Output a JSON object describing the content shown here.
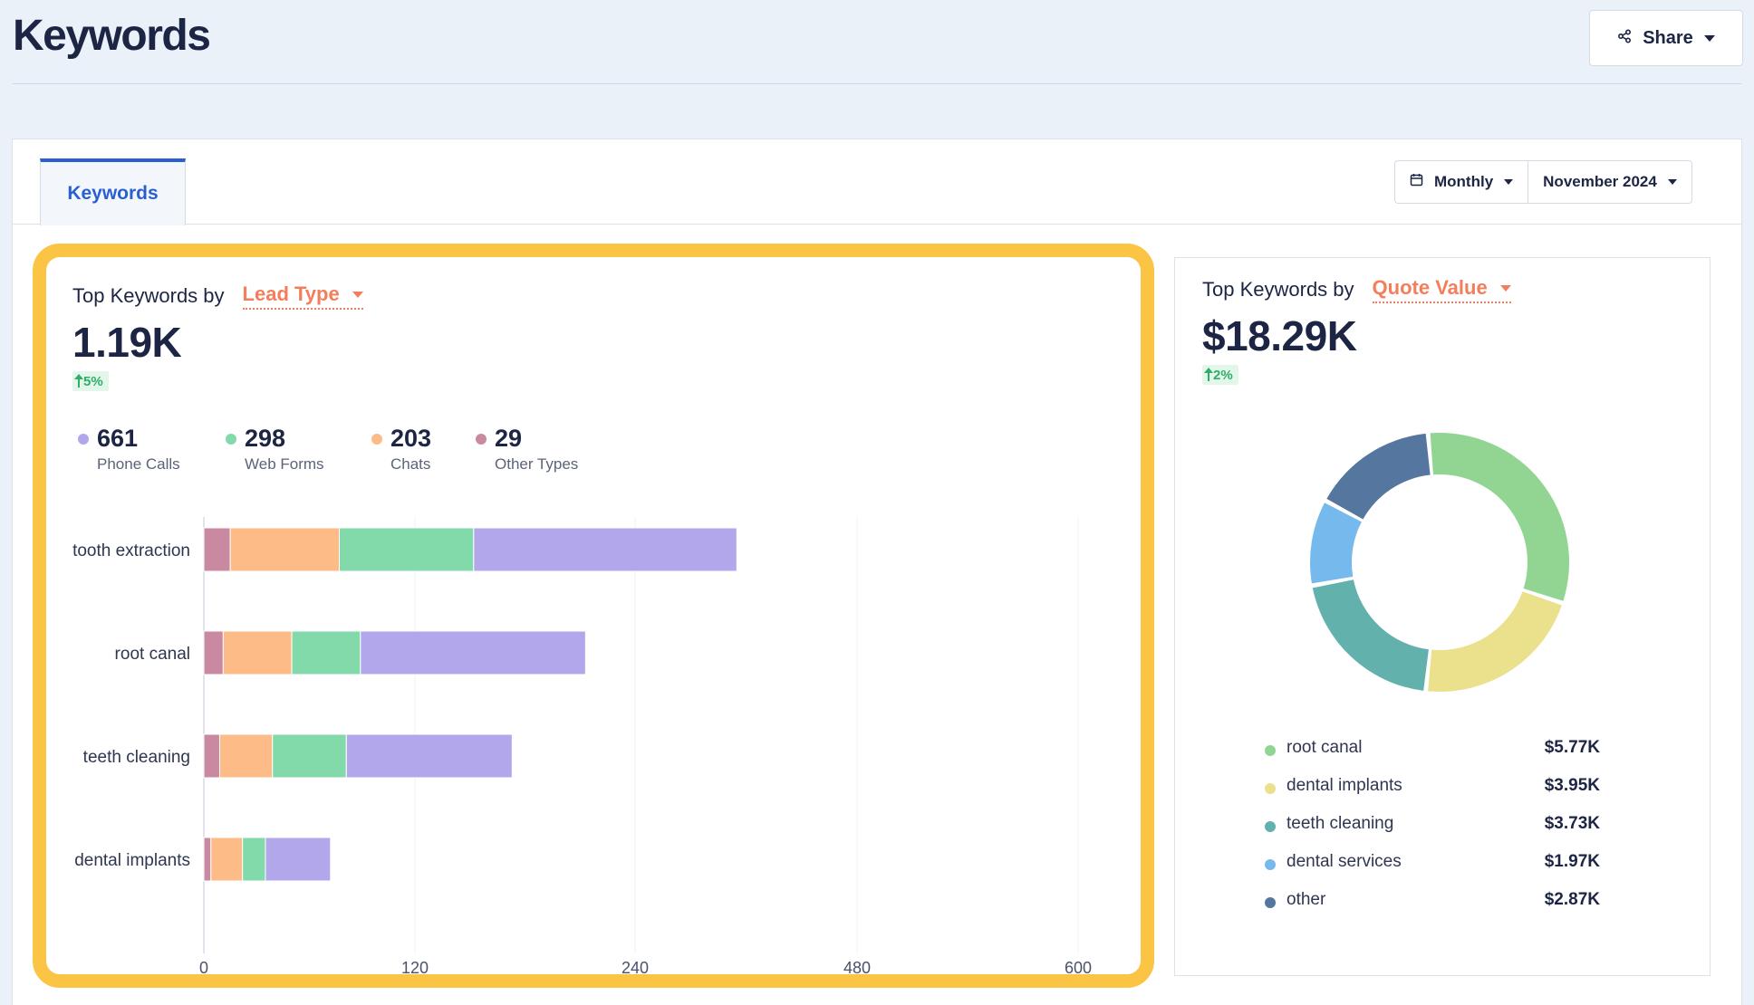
{
  "page": {
    "title": "Keywords"
  },
  "header": {
    "share_label": "Share"
  },
  "tabs": [
    {
      "label": "Keywords"
    }
  ],
  "period": {
    "granularity": "Monthly",
    "month": "November 2024"
  },
  "lead_card": {
    "heading": "Top Keywords by",
    "dimension": "Lead Type",
    "total": "1.19K",
    "delta": "5%",
    "stats": [
      {
        "value": "661",
        "label": "Phone Calls",
        "color": "#b3a7ec"
      },
      {
        "value": "298",
        "label": "Web Forms",
        "color": "#82d9aa"
      },
      {
        "value": "203",
        "label": "Chats",
        "color": "#fdbb87"
      },
      {
        "value": "29",
        "label": "Other Types",
        "color": "#c98aa1"
      }
    ]
  },
  "quote_card": {
    "heading": "Top Keywords by",
    "dimension": "Quote Value",
    "total": "$18.29K",
    "delta": "2%",
    "legend": [
      {
        "name": "root canal",
        "value": "$5.77K",
        "color": "#92d592"
      },
      {
        "name": "dental implants",
        "value": "$3.95K",
        "color": "#ebe08c"
      },
      {
        "name": "teeth cleaning",
        "value": "$3.73K",
        "color": "#63b1ad"
      },
      {
        "name": "dental services",
        "value": "$1.97K",
        "color": "#76baed"
      },
      {
        "name": "other",
        "value": "$2.87K",
        "color": "#54769f"
      }
    ]
  },
  "chart_data": [
    {
      "type": "bar",
      "orientation": "horizontal",
      "stacked": true,
      "categories": [
        "tooth extraction",
        "root canal",
        "teeth cleaning",
        "dental implants"
      ],
      "series": [
        {
          "name": "Other Types",
          "values": [
            15,
            11,
            9,
            4
          ],
          "color": "#c98aa1"
        },
        {
          "name": "Chats",
          "values": [
            62,
            39,
            30,
            18
          ],
          "color": "#fdbb87"
        },
        {
          "name": "Web Forms",
          "values": [
            75,
            39,
            42,
            13
          ],
          "color": "#82d9aa"
        },
        {
          "name": "Phone Calls",
          "values": [
            198,
            124,
            92,
            37
          ],
          "color": "#b3a7ec"
        }
      ],
      "x_ticks": [
        {
          "label": "0",
          "value": 0
        },
        {
          "label": "120",
          "value": 120
        },
        {
          "label": "240",
          "value": 240
        },
        {
          "label": "480",
          "value": 480
        },
        {
          "label": "600",
          "value": 600
        }
      ],
      "grid": true
    },
    {
      "type": "pie",
      "donut": true,
      "categories": [
        "root canal",
        "dental implants",
        "teeth cleaning",
        "dental services",
        "other"
      ],
      "values": [
        5.77,
        3.95,
        3.73,
        1.97,
        2.87
      ],
      "unit": "$K",
      "colors": [
        "#92d592",
        "#ebe08c",
        "#63b1ad",
        "#76baed",
        "#54769f"
      ]
    }
  ]
}
